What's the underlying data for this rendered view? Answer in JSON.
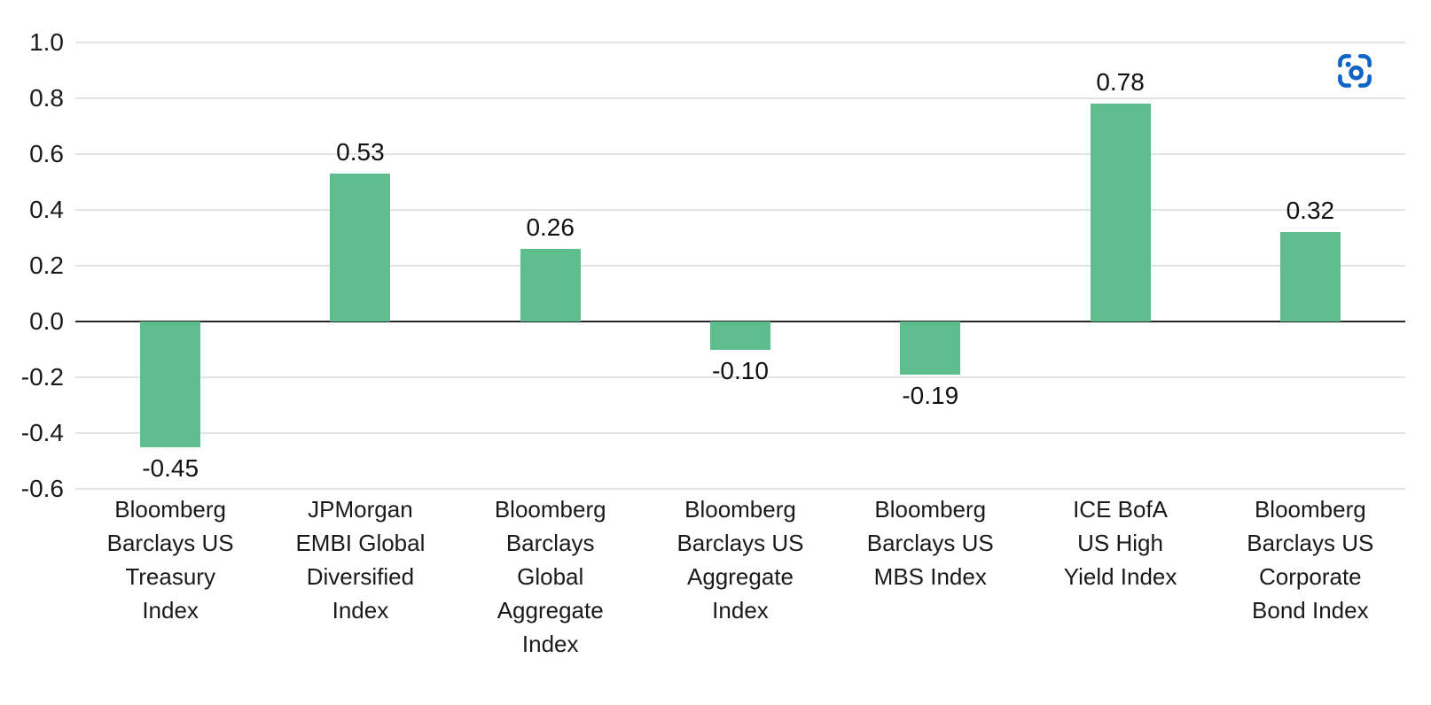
{
  "page": {
    "background_color": "#ffffff"
  },
  "toolbar": {
    "screenshot_button": {
      "icon": "camera-screenshot-icon",
      "color": "#1064c4"
    }
  },
  "chart_data": {
    "type": "bar",
    "title": "",
    "xlabel": "",
    "ylabel": "",
    "categories": [
      "Bloomberg Barclays US Treasury Index",
      "JPMorgan EMBI Global Diversified Index",
      "Bloomberg Barclays Global Aggregate Index",
      "Bloomberg Barclays US Aggregate Index",
      "Bloomberg Barclays US MBS Index",
      "ICE BofA US High Yield Index",
      "Bloomberg Barclays US Corporate Bond Index"
    ],
    "categories_lines": [
      [
        "Bloomberg",
        "Barclays US",
        "Treasury",
        "Index"
      ],
      [
        "JPMorgan",
        "EMBI Global",
        "Diversified",
        "Index"
      ],
      [
        "Bloomberg",
        "Barclays",
        "Global",
        "Aggregate",
        "Index"
      ],
      [
        "Bloomberg",
        "Barclays US",
        "Aggregate",
        "Index"
      ],
      [
        "Bloomberg",
        "Barclays US",
        "MBS Index"
      ],
      [
        "ICE BofA",
        "US High",
        "Yield Index"
      ],
      [
        "Bloomberg",
        "Barclays US",
        "Corporate",
        "Bond Index"
      ]
    ],
    "values": [
      -0.45,
      0.53,
      0.26,
      -0.1,
      -0.19,
      0.78,
      0.32
    ],
    "value_labels": [
      "-0.45",
      "0.53",
      "0.26",
      "-0.10",
      "-0.19",
      "0.78",
      "0.32"
    ],
    "ylim": [
      -0.6,
      1.0
    ],
    "yticks": [
      {
        "label": "1.0",
        "value": 1.0
      },
      {
        "label": "0.8",
        "value": 0.8
      },
      {
        "label": "0.6",
        "value": 0.6
      },
      {
        "label": "0.4",
        "value": 0.4
      },
      {
        "label": "0.2",
        "value": 0.2
      },
      {
        "label": "0.0",
        "value": 0.0
      },
      {
        "label": "-0.2",
        "value": -0.2
      },
      {
        "label": "-0.4",
        "value": -0.4
      },
      {
        "label": "-0.6",
        "value": -0.6
      }
    ],
    "grid": true,
    "legend": "none",
    "bar_color": "#5ebd8c",
    "gridline_color": "#e4e4e6",
    "zero_line_color": "#262626",
    "text_color": "#1a1a1a"
  }
}
